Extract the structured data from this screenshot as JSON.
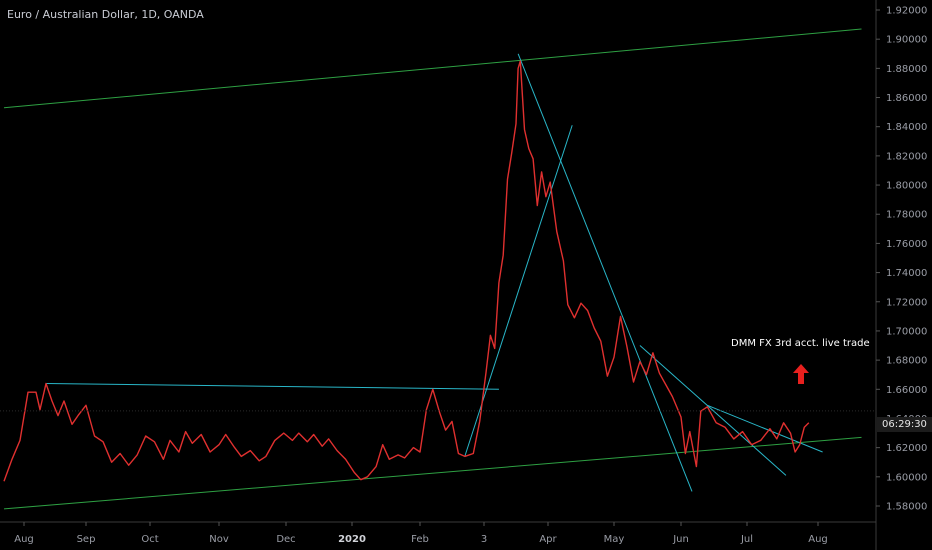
{
  "chart_data": {
    "type": "line",
    "title": "Euro / Australian Dollar, 1D, OANDA",
    "xlabel": "",
    "ylabel": "",
    "ylim": [
      1.575,
      1.925
    ],
    "grid": false,
    "x_ticks": [
      "Aug",
      "Sep",
      "Oct",
      "Nov",
      "Dec",
      "2020",
      "Feb",
      "3",
      "Apr",
      "May",
      "Jun",
      "Jul",
      "Aug"
    ],
    "y_ticks": [
      "1.92000",
      "1.90000",
      "1.88000",
      "1.86000",
      "1.84000",
      "1.82000",
      "1.80000",
      "1.78000",
      "1.76000",
      "1.74000",
      "1.72000",
      "1.70000",
      "1.68000",
      "1.66000",
      "1.64000",
      "1.62000",
      "1.60000",
      "1.58000"
    ],
    "series": [
      {
        "color": "#e0302f",
        "points": [
          [
            "2019-07-22",
            1.597
          ],
          [
            "2019-07-26",
            1.612
          ],
          [
            "2019-07-30",
            1.625
          ],
          [
            "2019-08-03",
            1.658
          ],
          [
            "2019-08-07",
            1.658
          ],
          [
            "2019-08-09",
            1.646
          ],
          [
            "2019-08-12",
            1.664
          ],
          [
            "2019-08-15",
            1.652
          ],
          [
            "2019-08-18",
            1.642
          ],
          [
            "2019-08-21",
            1.652
          ],
          [
            "2019-08-25",
            1.636
          ],
          [
            "2019-08-28",
            1.642
          ],
          [
            "2019-09-01",
            1.649
          ],
          [
            "2019-09-05",
            1.628
          ],
          [
            "2019-09-09",
            1.624
          ],
          [
            "2019-09-13",
            1.61
          ],
          [
            "2019-09-17",
            1.616
          ],
          [
            "2019-09-21",
            1.608
          ],
          [
            "2019-09-25",
            1.615
          ],
          [
            "2019-09-29",
            1.628
          ],
          [
            "2019-10-03",
            1.624
          ],
          [
            "2019-10-07",
            1.612
          ],
          [
            "2019-10-10",
            1.625
          ],
          [
            "2019-10-14",
            1.617
          ],
          [
            "2019-10-17",
            1.631
          ],
          [
            "2019-10-20",
            1.623
          ],
          [
            "2019-10-24",
            1.629
          ],
          [
            "2019-10-28",
            1.617
          ],
          [
            "2019-11-01",
            1.622
          ],
          [
            "2019-11-04",
            1.629
          ],
          [
            "2019-11-08",
            1.62
          ],
          [
            "2019-11-11",
            1.614
          ],
          [
            "2019-11-15",
            1.618
          ],
          [
            "2019-11-19",
            1.611
          ],
          [
            "2019-11-22",
            1.614
          ],
          [
            "2019-11-26",
            1.625
          ],
          [
            "2019-11-30",
            1.63
          ],
          [
            "2019-12-04",
            1.625
          ],
          [
            "2019-12-07",
            1.63
          ],
          [
            "2019-12-11",
            1.624
          ],
          [
            "2019-12-14",
            1.629
          ],
          [
            "2019-12-18",
            1.621
          ],
          [
            "2019-12-21",
            1.626
          ],
          [
            "2019-12-25",
            1.618
          ],
          [
            "2019-12-29",
            1.612
          ],
          [
            "2020-01-02",
            1.603
          ],
          [
            "2020-01-05",
            1.598
          ],
          [
            "2020-01-08",
            1.6
          ],
          [
            "2020-01-12",
            1.607
          ],
          [
            "2020-01-15",
            1.622
          ],
          [
            "2020-01-18",
            1.612
          ],
          [
            "2020-01-22",
            1.615
          ],
          [
            "2020-01-25",
            1.613
          ],
          [
            "2020-01-29",
            1.62
          ],
          [
            "2020-02-01",
            1.617
          ],
          [
            "2020-02-04",
            1.646
          ],
          [
            "2020-02-07",
            1.66
          ],
          [
            "2020-02-10",
            1.645
          ],
          [
            "2020-02-13",
            1.632
          ],
          [
            "2020-02-16",
            1.638
          ],
          [
            "2020-02-19",
            1.616
          ],
          [
            "2020-02-22",
            1.614
          ],
          [
            "2020-02-26",
            1.616
          ],
          [
            "2020-02-29",
            1.638
          ],
          [
            "2020-03-03",
            1.672
          ],
          [
            "2020-03-05",
            1.697
          ],
          [
            "2020-03-07",
            1.688
          ],
          [
            "2020-03-09",
            1.733
          ],
          [
            "2020-03-11",
            1.752
          ],
          [
            "2020-03-13",
            1.804
          ],
          [
            "2020-03-15",
            1.822
          ],
          [
            "2020-03-17",
            1.842
          ],
          [
            "2020-03-18",
            1.88
          ],
          [
            "2020-03-19",
            1.885
          ],
          [
            "2020-03-21",
            1.838
          ],
          [
            "2020-03-23",
            1.825
          ],
          [
            "2020-03-25",
            1.818
          ],
          [
            "2020-03-27",
            1.786
          ],
          [
            "2020-03-29",
            1.809
          ],
          [
            "2020-03-31",
            1.792
          ],
          [
            "2020-04-02",
            1.802
          ],
          [
            "2020-04-05",
            1.768
          ],
          [
            "2020-04-08",
            1.748
          ],
          [
            "2020-04-10",
            1.718
          ],
          [
            "2020-04-13",
            1.709
          ],
          [
            "2020-04-16",
            1.719
          ],
          [
            "2020-04-19",
            1.714
          ],
          [
            "2020-04-22",
            1.702
          ],
          [
            "2020-04-25",
            1.693
          ],
          [
            "2020-04-28",
            1.669
          ],
          [
            "2020-05-01",
            1.682
          ],
          [
            "2020-05-04",
            1.71
          ],
          [
            "2020-05-07",
            1.689
          ],
          [
            "2020-05-10",
            1.665
          ],
          [
            "2020-05-13",
            1.679
          ],
          [
            "2020-05-16",
            1.67
          ],
          [
            "2020-05-19",
            1.685
          ],
          [
            "2020-05-22",
            1.671
          ],
          [
            "2020-05-25",
            1.663
          ],
          [
            "2020-05-28",
            1.655
          ],
          [
            "2020-06-01",
            1.641
          ],
          [
            "2020-06-03",
            1.616
          ],
          [
            "2020-06-05",
            1.631
          ],
          [
            "2020-06-08",
            1.607
          ],
          [
            "2020-06-10",
            1.645
          ],
          [
            "2020-06-13",
            1.648
          ],
          [
            "2020-06-17",
            1.637
          ],
          [
            "2020-06-21",
            1.634
          ],
          [
            "2020-06-25",
            1.626
          ],
          [
            "2020-06-29",
            1.631
          ],
          [
            "2020-07-03",
            1.622
          ],
          [
            "2020-07-07",
            1.625
          ],
          [
            "2020-07-11",
            1.633
          ],
          [
            "2020-07-14",
            1.626
          ],
          [
            "2020-07-17",
            1.637
          ],
          [
            "2020-07-20",
            1.63
          ],
          [
            "2020-07-22",
            1.617
          ],
          [
            "2020-07-24",
            1.622
          ],
          [
            "2020-07-26",
            1.634
          ],
          [
            "2020-07-28",
            1.637
          ]
        ]
      }
    ],
    "trendlines": [
      {
        "color": "#2ea043",
        "from": [
          "2019-07-22",
          1.853
        ],
        "to": [
          "2020-08-20",
          1.907
        ]
      },
      {
        "color": "#2ea043",
        "from": [
          "2019-07-22",
          1.578
        ],
        "to": [
          "2020-08-20",
          1.627
        ]
      },
      {
        "color": "#29b6c8",
        "from": [
          "2019-08-12",
          1.664
        ],
        "to": [
          "2020-03-09",
          1.66
        ]
      },
      {
        "color": "#29b6c8",
        "from": [
          "2020-02-22",
          1.614
        ],
        "to": [
          "2020-04-12",
          1.841
        ]
      },
      {
        "color": "#29b6c8",
        "from": [
          "2020-03-18",
          1.89
        ],
        "to": [
          "2020-06-06",
          1.59
        ]
      },
      {
        "color": "#29b6c8",
        "from": [
          "2020-05-13",
          1.69
        ],
        "to": [
          "2020-07-18",
          1.601
        ]
      },
      {
        "color": "#29b6c8",
        "from": [
          "2020-06-13",
          1.649
        ],
        "to": [
          "2020-08-03",
          1.617
        ]
      }
    ],
    "annotation": "DMM FX 3rd acct. live trade",
    "current_price_label": "06:29:30"
  }
}
